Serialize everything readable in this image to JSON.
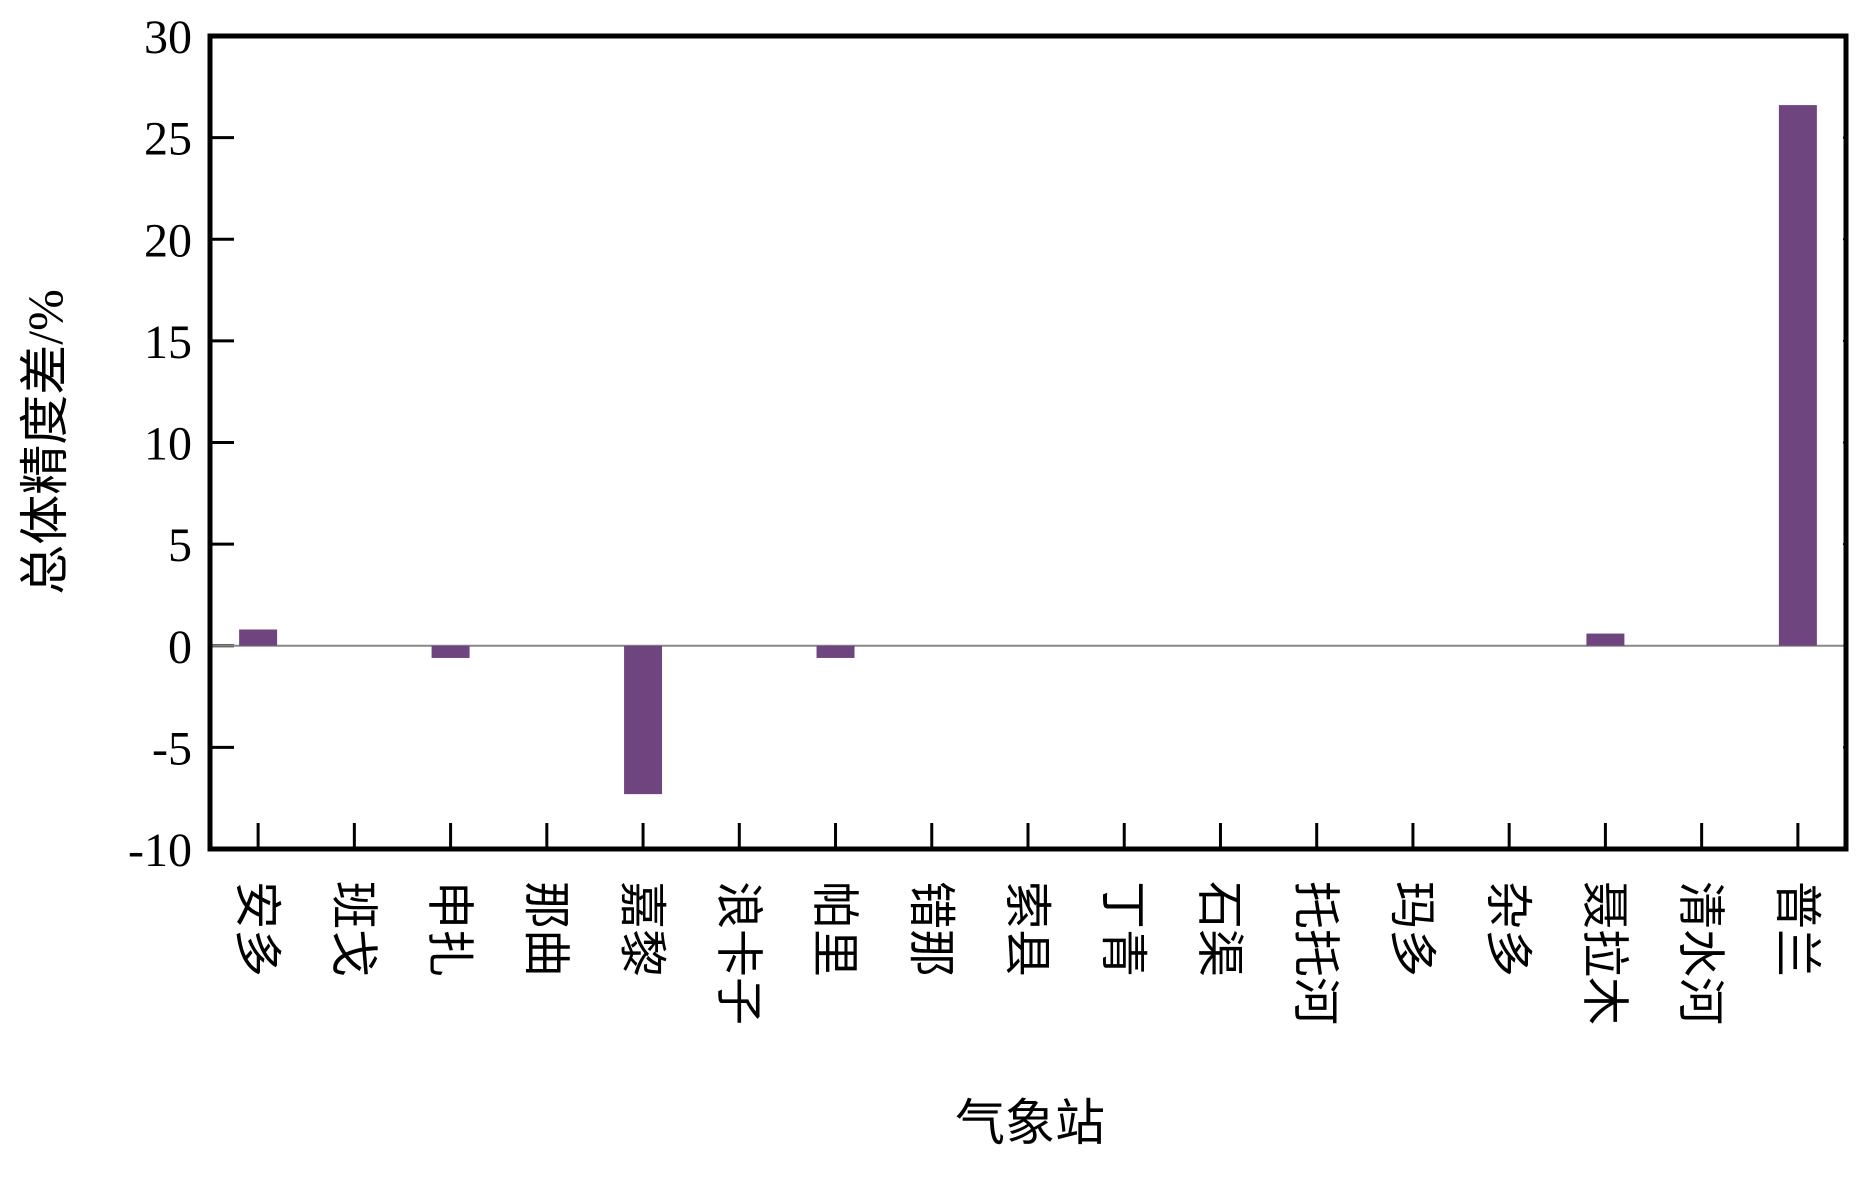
{
  "chart_data": {
    "type": "bar",
    "x_label": "气象站",
    "y_label": "总体精度差/%",
    "categories": [
      "安多",
      "班戈",
      "申扎",
      "那曲",
      "嘉黎",
      "浪卡子",
      "帕里",
      "错那",
      "索县",
      "丁青",
      "石渠",
      "托托河",
      "玛多",
      "杂多",
      "聂拉木",
      "清水河",
      "普兰"
    ],
    "values": [
      0.8,
      0,
      -0.6,
      0,
      -7.3,
      0,
      -0.6,
      0,
      0,
      0,
      0,
      0,
      0,
      0,
      0.6,
      0,
      26.6
    ],
    "color": "#6f4580",
    "ylim": [
      -10,
      30
    ],
    "yticks": [
      -10,
      -5,
      0,
      5,
      10,
      15,
      20,
      25,
      30
    ],
    "grid": false
  }
}
